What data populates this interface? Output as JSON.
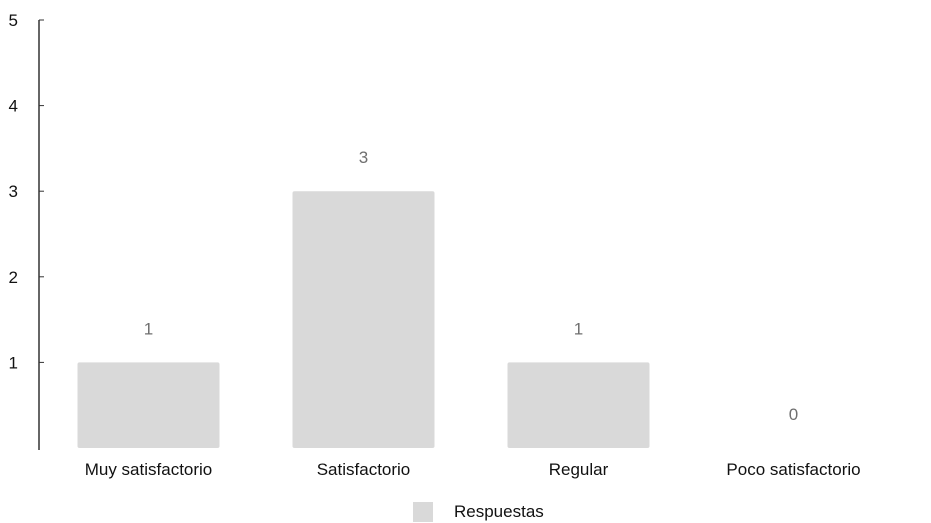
{
  "chart_data": {
    "type": "bar",
    "categories": [
      "Muy satisfactorio",
      "Satisfactorio",
      "Regular",
      "Poco satisfactorio"
    ],
    "series": [
      {
        "name": "Respuestas",
        "values": [
          1,
          3,
          1,
          0
        ],
        "color": "#d9d9d9"
      }
    ],
    "yticks": [
      1,
      2,
      3,
      4,
      5
    ],
    "ylim": [
      0,
      5
    ],
    "title": "",
    "xlabel": "",
    "ylabel": "",
    "grid": false,
    "data_labels": true,
    "legend_position": "bottom-center"
  }
}
